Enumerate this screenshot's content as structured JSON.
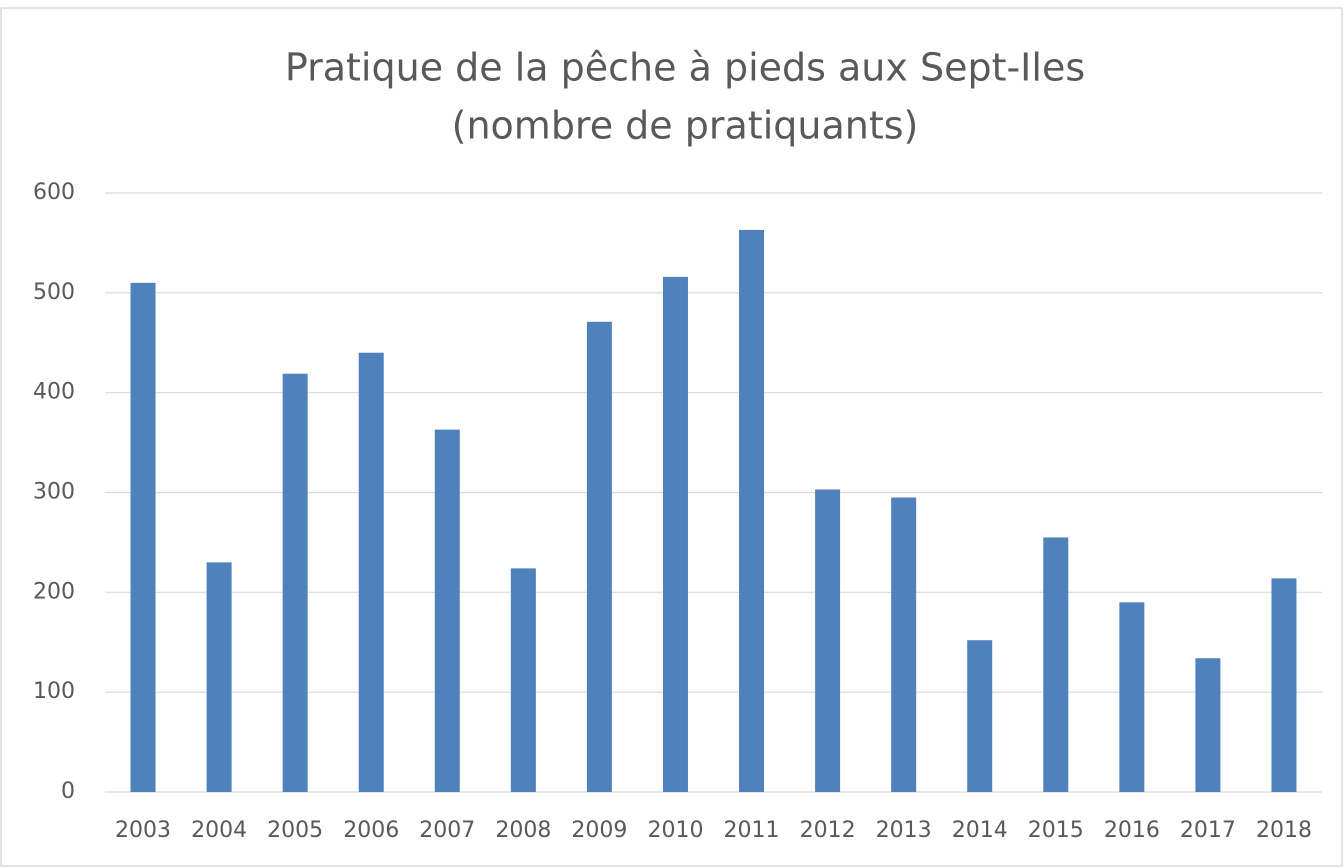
{
  "chart_data": {
    "type": "bar",
    "title": "Pratique de la pêche à pieds aux Sept-Iles",
    "subtitle": "(nombre de pratiquants)",
    "categories": [
      "2003",
      "2004",
      "2005",
      "2006",
      "2007",
      "2008",
      "2009",
      "2010",
      "2011",
      "2012",
      "2013",
      "2014",
      "2015",
      "2016",
      "2017",
      "2018"
    ],
    "values": [
      510,
      230,
      419,
      440,
      363,
      224,
      471,
      516,
      563,
      303,
      295,
      152,
      255,
      190,
      134,
      214
    ],
    "color": "#4f81bd",
    "ylim": [
      0,
      600
    ],
    "yticks": [
      0,
      100,
      200,
      300,
      400,
      500,
      600
    ],
    "grid": true
  }
}
